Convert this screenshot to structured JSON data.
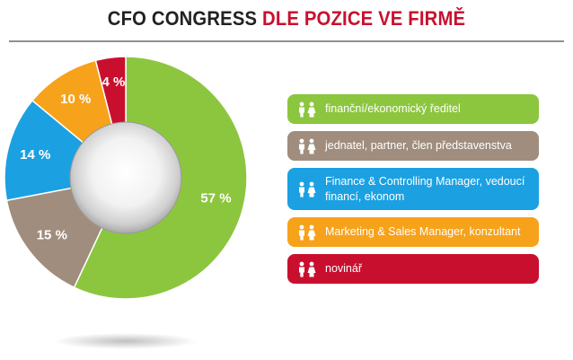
{
  "title": {
    "part1": "CFO CONGRESS",
    "part2": "DLE POZICE VE FIRMĚ"
  },
  "colors": {
    "green": "#8cc63f",
    "brown": "#a08d7e",
    "blue": "#1ba1e2",
    "orange": "#f7a21b",
    "red": "#c8102e",
    "title_dark": "#222222",
    "title_red": "#c8102e"
  },
  "chart_data": {
    "type": "pie",
    "variant": "donut",
    "slices": [
      {
        "label": "finanční/ekonomický ředitel",
        "value": 57,
        "text": "57 %",
        "color": "#8cc63f"
      },
      {
        "label": "jednatel, partner, člen představenstva",
        "value": 15,
        "text": "15 %",
        "color": "#a08d7e"
      },
      {
        "label": "Finance & Controlling Manager, vedoucí financí, ekonom",
        "value": 14,
        "text": "14 %",
        "color": "#1ba1e2"
      },
      {
        "label": "Marketing & Sales Manager, konzultant",
        "value": 10,
        "text": "10 %",
        "color": "#f7a21b"
      },
      {
        "label": "novinář",
        "value": 4,
        "text": "4 %",
        "color": "#c8102e"
      }
    ],
    "legend_position": "right",
    "legend_icon": "people-icon"
  },
  "legend": {
    "items": [
      {
        "text": "finanční/ekonomický ředitel",
        "color": "#8cc63f"
      },
      {
        "text": "jednatel, partner, člen představenstva",
        "color": "#a08d7e"
      },
      {
        "text": "Finance & Controlling Manager, vedoucí financí, ekonom",
        "color": "#1ba1e2"
      },
      {
        "text": "Marketing & Sales Manager, konzultant",
        "color": "#f7a21b"
      },
      {
        "text": "novinář",
        "color": "#c8102e"
      }
    ]
  }
}
